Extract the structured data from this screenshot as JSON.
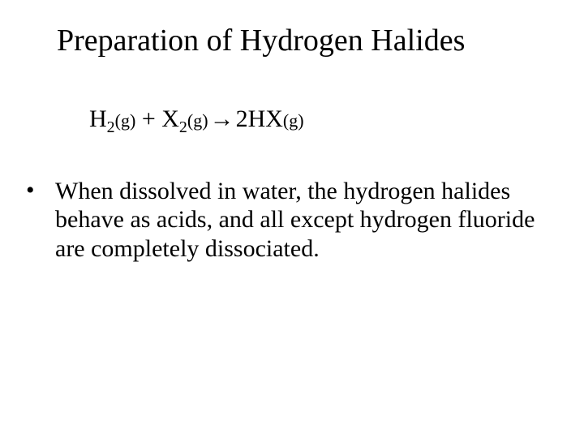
{
  "title": "Preparation of Hydrogen Halides",
  "equation": {
    "r1_species": "H",
    "r1_sub": "2",
    "r1_state": "(g)",
    "plus": " + ",
    "r2_species": "X",
    "r2_sub": "2",
    "r2_state": "(g)",
    "arrow": "  →  ",
    "p_coeff": "2",
    "p_species": "HX",
    "p_state": "(g)"
  },
  "bullet": {
    "marker": "•",
    "text": "When dissolved in water, the hydrogen halides behave as acids, and all except hydrogen fluoride are completely dissociated."
  },
  "style": {
    "background_color": "#ffffff",
    "text_color": "#000000",
    "title_fontsize": 38,
    "body_fontsize": 30,
    "font_family": "Times New Roman"
  }
}
